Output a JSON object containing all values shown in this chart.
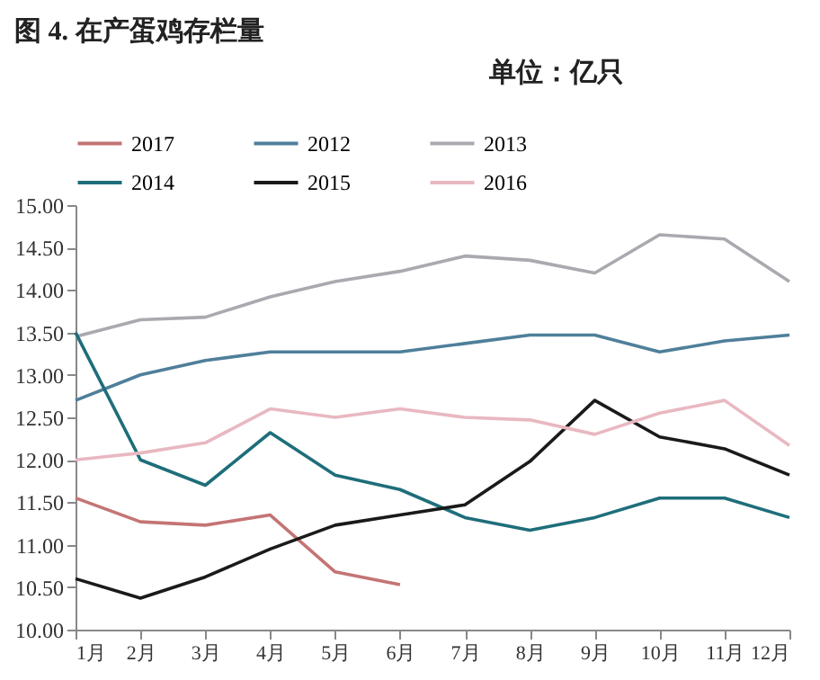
{
  "chart_data": {
    "type": "line",
    "title": "图 4. 在产蛋鸡存栏量",
    "subtitle": "单位：亿只",
    "categories": [
      "1月",
      "2月",
      "3月",
      "4月",
      "5月",
      "6月",
      "7月",
      "8月",
      "9月",
      "10月",
      "11月",
      "12月"
    ],
    "series": [
      {
        "name": "2017",
        "color": "#c47474",
        "values": [
          11.55,
          11.27,
          11.23,
          11.35,
          10.68,
          10.53,
          null,
          null,
          null,
          null,
          null,
          null
        ]
      },
      {
        "name": "2012",
        "color": "#4f7f9a",
        "values": [
          12.7,
          13.0,
          13.17,
          13.27,
          13.27,
          13.27,
          13.37,
          13.47,
          13.47,
          13.27,
          13.4,
          13.47
        ]
      },
      {
        "name": "2013",
        "color": "#a9a9b0",
        "values": [
          13.45,
          13.65,
          13.68,
          13.92,
          14.1,
          14.22,
          14.4,
          14.35,
          14.2,
          14.65,
          14.6,
          14.1
        ]
      },
      {
        "name": "2014",
        "color": "#1e6e7a",
        "values": [
          13.5,
          12.0,
          11.7,
          12.32,
          11.82,
          11.65,
          11.32,
          11.17,
          11.32,
          11.55,
          11.55,
          11.32
        ]
      },
      {
        "name": "2015",
        "color": "#1a1a1a",
        "values": [
          10.6,
          10.37,
          10.62,
          10.95,
          11.23,
          11.35,
          11.47,
          11.98,
          12.7,
          12.27,
          12.13,
          11.82
        ]
      },
      {
        "name": "2016",
        "color": "#e8b8c0",
        "values": [
          12.0,
          12.08,
          12.2,
          12.6,
          12.5,
          12.6,
          12.5,
          12.47,
          12.3,
          12.55,
          12.7,
          12.17
        ]
      }
    ],
    "ylim": [
      10,
      15
    ],
    "yticks": [
      {
        "value": 10,
        "label": "10.00"
      },
      {
        "value": 10.5,
        "label": "10.50"
      },
      {
        "value": 11,
        "label": "11.00"
      },
      {
        "value": 11.5,
        "label": "11.50"
      },
      {
        "value": 12,
        "label": "12.00"
      },
      {
        "value": 12.5,
        "label": "12.50"
      },
      {
        "value": 13,
        "label": "13.00"
      },
      {
        "value": 13.5,
        "label": "13.50"
      },
      {
        "value": 14,
        "label": "14.00"
      },
      {
        "value": 14.5,
        "label": "14.50"
      },
      {
        "value": 15,
        "label": "15.00"
      }
    ],
    "grid": false,
    "legend": "top",
    "marker": "none",
    "line_style": "solid"
  }
}
